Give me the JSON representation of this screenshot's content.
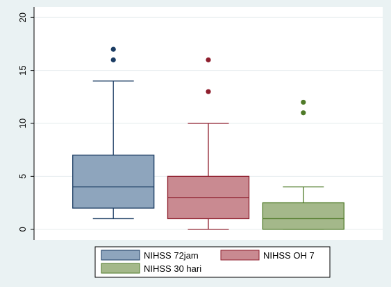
{
  "chart_data": {
    "type": "boxplot",
    "title": "",
    "xlabel": "",
    "ylabel": "",
    "ylim": [
      -1,
      21
    ],
    "y_ticks": [
      0,
      5,
      10,
      15,
      20
    ],
    "y_tick_labels": [
      "0",
      "5",
      "10",
      "15",
      "20"
    ],
    "grid": true,
    "legend_position": "bottom",
    "series": [
      {
        "name": "NIHSS 72jam",
        "min": 1,
        "q1": 2,
        "median": 4,
        "q3": 7,
        "max": 14,
        "outliers": [
          16,
          17
        ],
        "fill": "#8ea5bd",
        "stroke": "#1b3c63"
      },
      {
        "name": "NIHSS OH 7",
        "min": 0,
        "q1": 1,
        "median": 3,
        "q3": 5,
        "max": 10,
        "outliers": [
          13,
          16
        ],
        "fill": "#c98a91",
        "stroke": "#8e1e2d"
      },
      {
        "name": "NIHSS 30 hari",
        "min": 0,
        "q1": 0,
        "median": 1,
        "q3": 2.5,
        "max": 4,
        "outliers": [
          11,
          12
        ],
        "fill": "#a4b88a",
        "stroke": "#4f7a28"
      }
    ]
  }
}
